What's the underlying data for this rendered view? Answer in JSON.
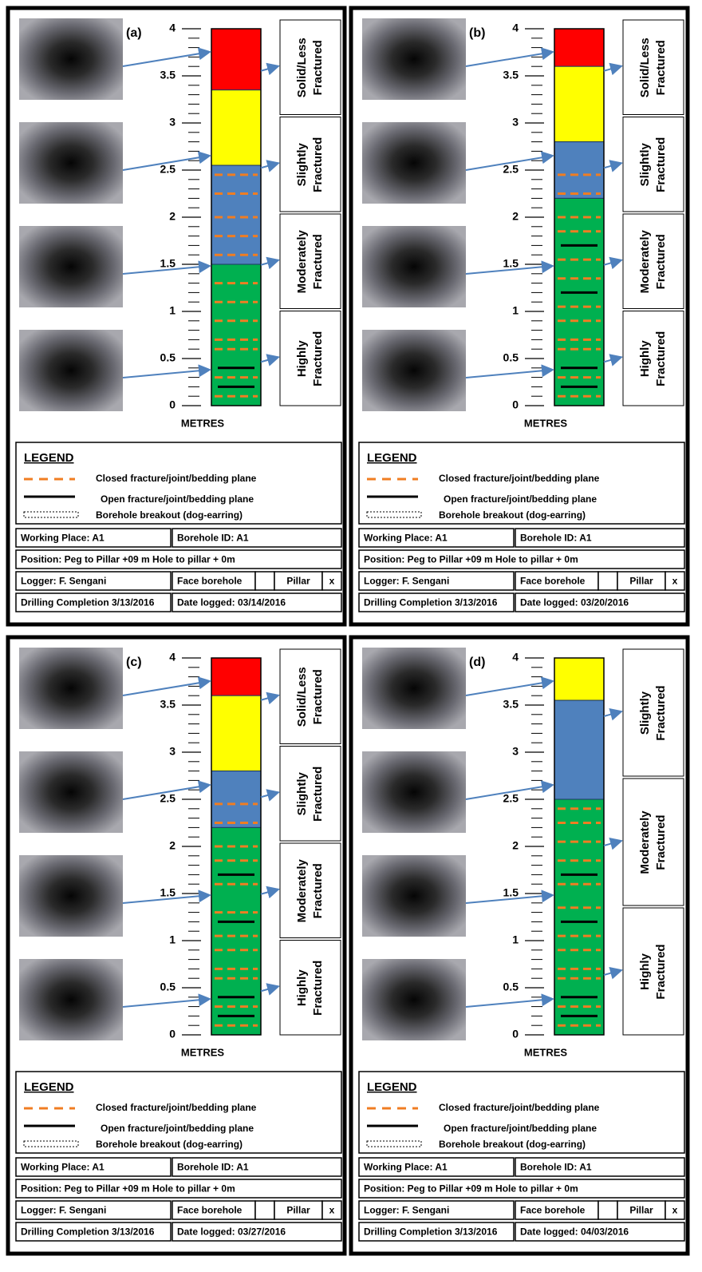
{
  "panels": [
    {
      "label": "(a)",
      "axis_label": "METRES",
      "ylim": [
        0,
        4
      ],
      "yticks": [
        0,
        0.5,
        1,
        1.5,
        2,
        2.5,
        3,
        3.5,
        4
      ],
      "zones": [
        {
          "from": 3.35,
          "to": 4,
          "color": "#ff0000"
        },
        {
          "from": 2.55,
          "to": 3.35,
          "color": "#ffff00"
        },
        {
          "from": 1.5,
          "to": 2.55,
          "color": "#4f81bd"
        },
        {
          "from": 0,
          "to": 1.5,
          "color": "#00b050"
        }
      ],
      "closed_fractures": [
        2.45,
        2.25,
        2.0,
        1.8,
        1.6,
        1.3,
        1.1,
        0.9,
        0.7,
        0.6,
        0.3,
        0.1
      ],
      "open_fractures": [
        0.4,
        0.2
      ],
      "classes": [
        [
          "Solid/Less",
          "Fractured"
        ],
        [
          "Slightly",
          "Fractured"
        ],
        [
          "Moderately",
          "Fractured"
        ],
        [
          "Highly",
          "Fractured"
        ]
      ],
      "legend": {
        "title": "LEGEND",
        "closed": "Closed fracture/joint/bedding plane",
        "open": "Open fracture/joint/bedding plane",
        "breakout": "Borehole breakout (dog-earring)"
      },
      "info": {
        "working_place": "Working Place: A1",
        "borehole_id": "Borehole ID: A1",
        "position": "Position: Peg to Pillar +09 m   Hole to pillar + 0m",
        "logger": "Logger: F. Sengani",
        "face": "Face borehole",
        "pillar": "Pillar",
        "mark": "x",
        "completion": "Drilling Completion 3/13/2016",
        "logged": "Date logged: 03/14/2016"
      }
    },
    {
      "label": "(b)",
      "axis_label": "METRES",
      "ylim": [
        0,
        4
      ],
      "yticks": [
        0,
        0.5,
        1,
        1.5,
        2,
        2.5,
        3,
        3.5,
        4
      ],
      "zones": [
        {
          "from": 3.6,
          "to": 4,
          "color": "#ff0000"
        },
        {
          "from": 2.8,
          "to": 3.6,
          "color": "#ffff00"
        },
        {
          "from": 2.2,
          "to": 2.8,
          "color": "#4f81bd"
        },
        {
          "from": 0,
          "to": 2.2,
          "color": "#00b050"
        }
      ],
      "closed_fractures": [
        2.45,
        2.25,
        2.0,
        1.85,
        1.55,
        1.35,
        1.05,
        0.9,
        0.7,
        0.6,
        0.3,
        0.1
      ],
      "open_fractures": [
        1.7,
        1.2,
        0.4,
        0.2
      ],
      "classes": [
        [
          "Solid/Less",
          "Fractured"
        ],
        [
          "Slightly",
          "Fractured"
        ],
        [
          "Moderately",
          "Fractured"
        ],
        [
          "Highly",
          "Fractured"
        ]
      ],
      "legend": {
        "title": "LEGEND",
        "closed": "Closed fracture/joint/bedding plane",
        "open": "Open fracture/joint/bedding plane",
        "breakout": "Borehole breakout (dog-earring)"
      },
      "info": {
        "working_place": "Working Place: A1",
        "borehole_id": "Borehole ID: A1",
        "position": "Position: Peg to Pillar +09 m   Hole to pillar + 0m",
        "logger": "Logger: F. Sengani",
        "face": "Face borehole",
        "pillar": "Pillar",
        "mark": "x",
        "completion": "Drilling Completion 3/13/2016",
        "logged": "Date logged: 03/20/2016"
      }
    },
    {
      "label": "(c)",
      "axis_label": "METRES",
      "ylim": [
        0,
        4
      ],
      "yticks": [
        0,
        0.5,
        1,
        1.5,
        2,
        2.5,
        3,
        3.5,
        4
      ],
      "zones": [
        {
          "from": 3.6,
          "to": 4,
          "color": "#ff0000"
        },
        {
          "from": 2.8,
          "to": 3.6,
          "color": "#ffff00"
        },
        {
          "from": 2.2,
          "to": 2.8,
          "color": "#4f81bd"
        },
        {
          "from": 0,
          "to": 2.2,
          "color": "#00b050"
        }
      ],
      "closed_fractures": [
        2.45,
        2.25,
        2.0,
        1.85,
        1.6,
        1.3,
        1.05,
        0.9,
        0.7,
        0.6,
        0.3,
        0.1
      ],
      "open_fractures": [
        1.7,
        1.2,
        0.4,
        0.2
      ],
      "classes": [
        [
          "Solid/Less",
          "Fractured"
        ],
        [
          "Slightly",
          "Fractured"
        ],
        [
          "Moderately",
          "Fractured"
        ],
        [
          "Highly",
          "Fractured"
        ]
      ],
      "legend": {
        "title": "LEGEND",
        "closed": "Closed fracture/joint/bedding plane",
        "open": "Open fracture/joint/bedding plane",
        "breakout": "Borehole breakout (dog-earring)"
      },
      "info": {
        "working_place": "Working Place: A1",
        "borehole_id": "Borehole ID: A1",
        "position": "Position: Peg to Pillar +09 m   Hole to pillar + 0m",
        "logger": "Logger: F. Sengani",
        "face": "Face borehole",
        "pillar": "Pillar",
        "mark": "x",
        "completion": "Drilling Completion 3/13/2016",
        "logged": "Date logged: 03/27/2016"
      }
    },
    {
      "label": "(d)",
      "axis_label": "METRES",
      "ylim": [
        0,
        4
      ],
      "yticks": [
        0,
        0.5,
        1,
        1.5,
        2,
        2.5,
        3,
        3.5,
        4
      ],
      "zones": [
        {
          "from": 3.55,
          "to": 4,
          "color": "#ffff00"
        },
        {
          "from": 2.5,
          "to": 3.55,
          "color": "#4f81bd"
        },
        {
          "from": 0,
          "to": 2.5,
          "color": "#00b050"
        }
      ],
      "closed_fractures": [
        2.4,
        2.25,
        2.05,
        1.85,
        1.6,
        1.35,
        1.05,
        0.9,
        0.7,
        0.6,
        0.3,
        0.1
      ],
      "open_fractures": [
        1.7,
        1.2,
        0.4,
        0.2
      ],
      "classes": [
        [
          "Slightly",
          "Fractured"
        ],
        [
          "Moderately",
          "Fractured"
        ],
        [
          "Highly",
          "Fractured"
        ]
      ],
      "legend": {
        "title": "LEGEND",
        "closed": "Closed fracture/joint/bedding plane",
        "open": "Open fracture/joint/bedding plane",
        "breakout": "Borehole breakout (dog-earring)"
      },
      "info": {
        "working_place": "Working Place: A1",
        "borehole_id": "Borehole ID: A1",
        "position": "Position: Peg to Pillar +09 m   Hole to pillar + 0m",
        "logger": "Logger: F. Sengani",
        "face": "Face borehole",
        "pillar": "Pillar",
        "mark": "x",
        "completion": "Drilling Completion 3/13/2016",
        "logged": "Date logged: 04/03/2016"
      }
    }
  ]
}
